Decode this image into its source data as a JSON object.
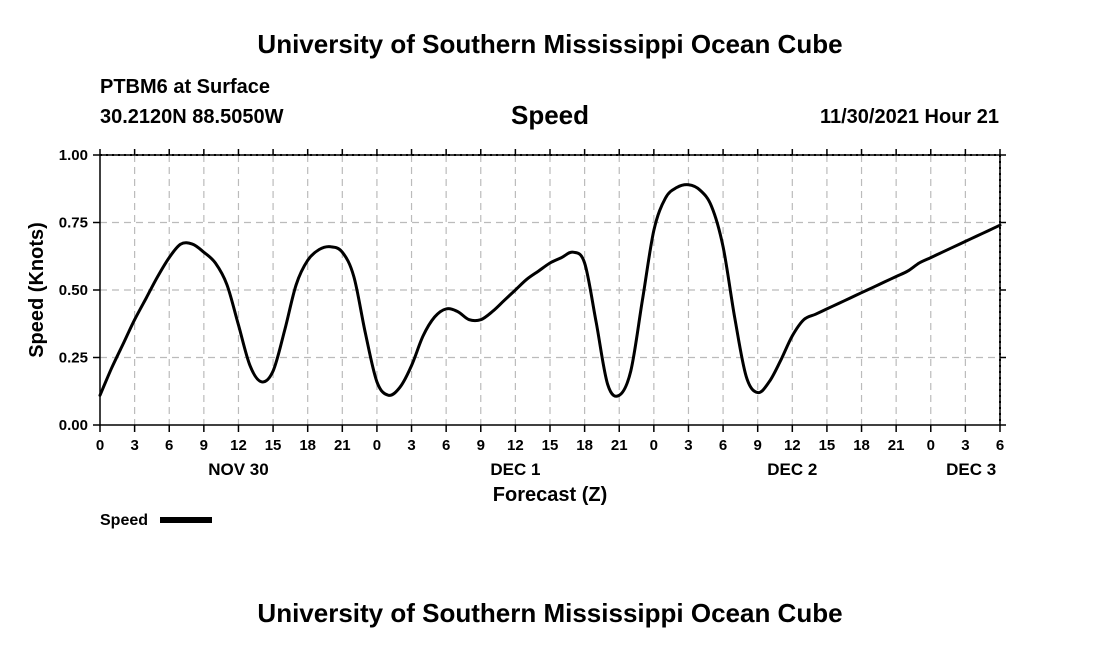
{
  "header": {
    "title_top": "University of Southern Mississippi Ocean Cube",
    "title_bottom": "University of Southern Mississippi Ocean Cube",
    "station": "PTBM6 at Surface",
    "coordinates": "30.2120N  88.5050W",
    "datetime": "11/30/2021 Hour 21"
  },
  "chart_data": {
    "type": "line",
    "title": "Speed",
    "xlabel": "Forecast (Z)",
    "ylabel": "Speed (Knots)",
    "ylim": [
      0,
      1
    ],
    "yticks": [
      0,
      0.25,
      0.5,
      0.75,
      1.0
    ],
    "ytick_labels": [
      "0.00",
      "0.25",
      "0.50",
      "0.75",
      "1.00"
    ],
    "xlim_hours": [
      0,
      78
    ],
    "xtick_hours": [
      0,
      3,
      6,
      9,
      12,
      15,
      18,
      21,
      24,
      27,
      30,
      33,
      36,
      39,
      42,
      45,
      48,
      51,
      54,
      57,
      60,
      63,
      66,
      69,
      72,
      75,
      78
    ],
    "xtick_labels": [
      "0",
      "3",
      "6",
      "9",
      "12",
      "15",
      "18",
      "21",
      "0",
      "3",
      "6",
      "9",
      "12",
      "15",
      "18",
      "21",
      "0",
      "3",
      "6",
      "9",
      "12",
      "15",
      "18",
      "21",
      "0",
      "3",
      "6"
    ],
    "date_labels": [
      {
        "hour": 12,
        "label": "NOV 30"
      },
      {
        "hour": 36,
        "label": "DEC 1"
      },
      {
        "hour": 60,
        "label": "DEC 2"
      },
      {
        "hour": 75.5,
        "label": "DEC 3"
      }
    ],
    "grid": true,
    "legend": {
      "label": "Speed",
      "placement": "bottom-left"
    },
    "series": [
      {
        "name": "Speed",
        "x": [
          0,
          1,
          2,
          3,
          4,
          5,
          6,
          7,
          8,
          9,
          10,
          11,
          12,
          13,
          14,
          15,
          16,
          17,
          18,
          19,
          20,
          21,
          22,
          23,
          24,
          25,
          26,
          27,
          28,
          29,
          30,
          31,
          32,
          33,
          34,
          35,
          36,
          37,
          38,
          39,
          40,
          41,
          42,
          43,
          44,
          45,
          46,
          47,
          48,
          49,
          50,
          51,
          52,
          53,
          54,
          55,
          56,
          57,
          58,
          59,
          60,
          61,
          62,
          63,
          64,
          65,
          66,
          67,
          68,
          69,
          70,
          71,
          72,
          73,
          74,
          75,
          76,
          77,
          78
        ],
        "values": [
          0.11,
          0.21,
          0.3,
          0.39,
          0.47,
          0.55,
          0.62,
          0.67,
          0.67,
          0.64,
          0.6,
          0.52,
          0.37,
          0.22,
          0.16,
          0.2,
          0.35,
          0.52,
          0.61,
          0.65,
          0.66,
          0.64,
          0.55,
          0.34,
          0.16,
          0.11,
          0.14,
          0.22,
          0.33,
          0.4,
          0.43,
          0.42,
          0.39,
          0.39,
          0.42,
          0.46,
          0.5,
          0.54,
          0.57,
          0.6,
          0.62,
          0.64,
          0.6,
          0.38,
          0.15,
          0.11,
          0.2,
          0.46,
          0.72,
          0.84,
          0.88,
          0.89,
          0.87,
          0.81,
          0.66,
          0.4,
          0.18,
          0.12,
          0.16,
          0.24,
          0.33,
          0.39,
          0.41,
          0.43,
          0.45,
          0.47,
          0.49,
          0.51,
          0.53,
          0.55,
          0.57,
          0.6,
          0.62,
          0.64,
          0.66,
          0.68,
          0.7,
          0.72,
          0.74
        ]
      }
    ]
  }
}
